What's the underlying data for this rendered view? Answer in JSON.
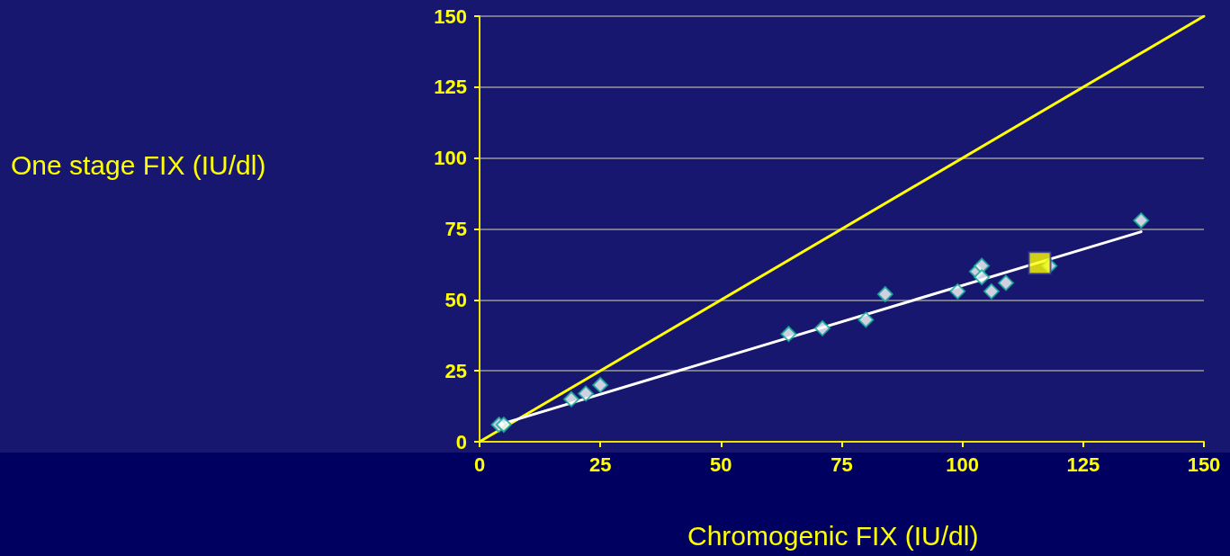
{
  "chart_data": {
    "type": "scatter",
    "xlabel": "Chromogenic FIX (IU/dl)",
    "annotations": [
      "One stage FIX (IU/dl)"
    ],
    "xlim": [
      0,
      150
    ],
    "xticks": [
      0,
      25,
      50,
      75,
      100,
      125,
      150
    ],
    "ylim": [
      0,
      150
    ],
    "yticks": [
      0,
      25,
      50,
      75,
      100,
      125,
      150
    ],
    "grid": "y",
    "series": [
      {
        "type": "line",
        "color": "#ffff00",
        "x": [
          0,
          150
        ],
        "values": [
          0,
          150
        ],
        "marker": "none",
        "line_style": "solid"
      },
      {
        "type": "line",
        "color": "#ffffff",
        "x": [
          4,
          137
        ],
        "values": [
          6,
          74
        ],
        "marker": "none",
        "line_style": "solid"
      },
      {
        "color": "#ffffff",
        "marker": "diamond",
        "x": [
          4,
          5,
          19,
          22,
          25,
          64,
          71,
          80,
          84,
          99,
          103,
          104,
          104,
          106,
          109,
          118,
          137
        ],
        "values": [
          6,
          6,
          15,
          17,
          20,
          38,
          40,
          43,
          52,
          53,
          60,
          62,
          58,
          53,
          56,
          62,
          78
        ]
      },
      {
        "color": "#ffff00",
        "marker": "square",
        "x": [
          116
        ],
        "values": [
          63
        ]
      }
    ]
  }
}
